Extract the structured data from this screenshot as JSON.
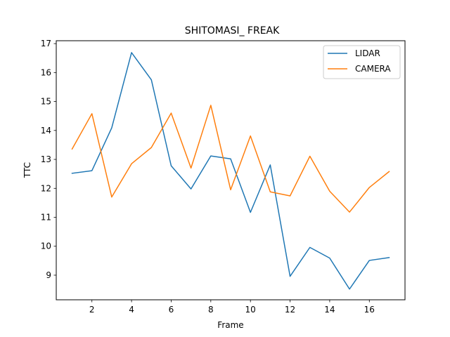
{
  "chart_data": {
    "type": "line",
    "title": "SHITOMASI_ FREAK",
    "xlabel": "Frame",
    "ylabel": "TTC",
    "xlim": [
      0.2,
      17.8
    ],
    "ylim": [
      8.15,
      17.1
    ],
    "xticks": [
      2,
      4,
      6,
      8,
      10,
      12,
      14,
      16
    ],
    "yticks": [
      9,
      10,
      11,
      12,
      13,
      14,
      15,
      16,
      17
    ],
    "grid": false,
    "legend_position": "top-right",
    "x": [
      1,
      2,
      3,
      4,
      5,
      6,
      7,
      8,
      9,
      10,
      11,
      12,
      13,
      14,
      15,
      16,
      17
    ],
    "series": [
      {
        "name": "LIDAR",
        "color": "#1f77b4",
        "values": [
          12.52,
          12.61,
          14.09,
          16.69,
          15.75,
          12.78,
          11.98,
          13.12,
          13.02,
          11.17,
          12.81,
          8.96,
          9.96,
          9.59,
          8.52,
          9.51,
          9.61
        ]
      },
      {
        "name": "CAMERA",
        "color": "#ff7f0e",
        "values": [
          13.36,
          14.58,
          11.7,
          12.85,
          13.41,
          14.6,
          12.7,
          14.87,
          11.95,
          13.81,
          11.88,
          11.74,
          13.11,
          11.9,
          11.18,
          12.03,
          12.58
        ]
      }
    ]
  }
}
